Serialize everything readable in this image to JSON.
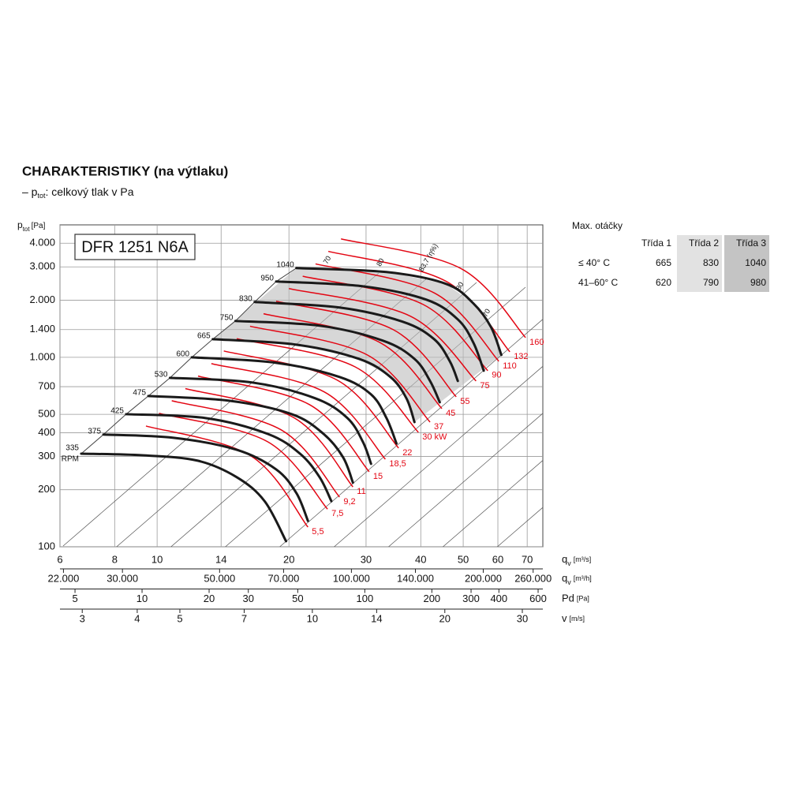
{
  "chart_data": {
    "type": "line",
    "title": "CHARAKTERISTIKY (na výtlaku)",
    "subtitle": {
      "prefix": "– p",
      "sub": "tot",
      "suffix": ": celkový tlak v Pa"
    },
    "y_label": {
      "symbol": "p",
      "sub": "tot",
      "unit": "[Pa]"
    },
    "model": "DFR 1251 N6A",
    "log_x": true,
    "log_y": true,
    "grid": true,
    "ylim": [
      100,
      5000
    ],
    "yticks": [
      100,
      200,
      300,
      400,
      500,
      700,
      {
        "value": 1000,
        "label": "1.000"
      },
      {
        "value": 1400,
        "label": "1.400"
      },
      {
        "value": 2000,
        "label": "2.000"
      },
      {
        "value": 3000,
        "label": "3.000"
      },
      {
        "value": 4000,
        "label": "4.000"
      }
    ],
    "xlim": [
      6,
      76
    ],
    "xticks": [
      6,
      8,
      10,
      14,
      20,
      30,
      40,
      50,
      60,
      70
    ],
    "x_label": {
      "symbol": "q",
      "sub": "v",
      "unit": "[m³/s]"
    },
    "secondary_x_axes": [
      {
        "label": {
          "symbol": "q",
          "sub": "v",
          "unit": "[m³/h]"
        },
        "lim": [
          21600,
          273600
        ],
        "ticks": [
          {
            "value": 22000,
            "label": "22.000"
          },
          {
            "value": 30000,
            "label": "30.000"
          },
          {
            "value": 50000,
            "label": "50.000"
          },
          {
            "value": 70000,
            "label": "70.000"
          },
          {
            "value": 100000,
            "label": "100.000"
          },
          {
            "value": 140000,
            "label": "140.000"
          },
          {
            "value": 200000,
            "label": "200.000"
          },
          {
            "value": 260000,
            "label": "260.000"
          }
        ]
      },
      {
        "label": {
          "symbol": "Pd",
          "unit": "[Pa]"
        },
        "lim": [
          4.28,
          630
        ],
        "ticks": [
          5,
          10,
          20,
          30,
          50,
          100,
          200,
          300,
          400,
          600
        ]
      },
      {
        "label": {
          "symbol": "v",
          "unit": "[m/s]"
        },
        "lim": [
          2.67,
          33.4
        ],
        "ticks": [
          3,
          4,
          5,
          7,
          10,
          14,
          20,
          30
        ]
      }
    ],
    "rpm_unit": "RPM",
    "shaded_between": [
      6,
      10
    ],
    "series": [
      {
        "name": "335",
        "color": "#1a1a1a",
        "x": [
          6.71,
          9.24,
          12.35,
          15.2,
          17.6,
          19.7
        ],
        "values": [
          310,
          304,
          285,
          233,
          174,
          107
        ]
      },
      {
        "name": "375",
        "color": "#1a1a1a",
        "x": [
          7.54,
          10.9,
          15.2,
          18.7,
          20.8,
          22.1
        ],
        "values": [
          391,
          376,
          325,
          256,
          192,
          137
        ]
      },
      {
        "name": "425",
        "color": "#1a1a1a",
        "x": [
          8.5,
          12.9,
          17.9,
          21.2,
          23.5,
          25.0
        ],
        "values": [
          501,
          478,
          394,
          310,
          233,
          174
        ]
      },
      {
        "name": "475",
        "color": "#1a1a1a",
        "x": [
          9.55,
          14.6,
          20.3,
          24.0,
          26.6,
          28.0
        ],
        "values": [
          625,
          590,
          501,
          394,
          296,
          218
        ]
      },
      {
        "name": "530",
        "color": "#1a1a1a",
        "x": [
          10.7,
          16.5,
          23.0,
          27.2,
          29.5,
          30.8
        ],
        "values": [
          779,
          736,
          607,
          478,
          358,
          274
        ]
      },
      {
        "name": "600",
        "color": "#1a1a1a",
        "x": [
          12.0,
          18.7,
          26.1,
          30.8,
          33.4,
          35.2
        ],
        "values": [
          1000,
          935,
          787,
          637,
          478,
          351
        ]
      },
      {
        "name": "665",
        "color": "#1a1a1a",
        "x": [
          13.4,
          20.8,
          28.9,
          34.1,
          37.1,
          38.7
        ],
        "values": [
          1247,
          1166,
          981,
          787,
          607,
          455
        ]
      },
      {
        "name": "750",
        "color": "#1a1a1a",
        "x": [
          15.1,
          23.5,
          32.8,
          38.7,
          42.0,
          44.2
        ],
        "values": [
          1555,
          1468,
          1224,
          981,
          750,
          579
        ]
      },
      {
        "name": "830",
        "color": "#1a1a1a",
        "x": [
          16.7,
          26.1,
          36.4,
          42.9,
          46.6,
          48.6
        ],
        "values": [
          1958,
          1831,
          1540,
          1247,
          953,
          750
        ]
      },
      {
        "name": "950",
        "color": "#1a1a1a",
        "x": [
          18.7,
          29.5,
          41.2,
          48.6,
          52.8,
          55.7
        ],
        "values": [
          2512,
          2371,
          2015,
          1585,
          1189,
          850
        ]
      },
      {
        "name": "1040",
        "color": "#1a1a1a",
        "x": [
          20.8,
          33.4,
          45.7,
          52.8,
          57.9,
          61.1
        ],
        "values": [
          2958,
          2818,
          2441,
          1920,
          1440,
          1029
        ]
      }
    ],
    "power_series": [
      {
        "name": "5,5",
        "color": "#e30613",
        "x": [
          9.43,
          16.4,
          22.1
        ],
        "values": [
          434,
          301,
          127
        ]
      },
      {
        "name": "7,5",
        "color": "#e30613",
        "x": [
          10.1,
          17.9,
          24.5
        ],
        "values": [
          506,
          358,
          158
        ]
      },
      {
        "name": "9,2",
        "color": "#e30613",
        "x": [
          10.8,
          19.2,
          26.1
        ],
        "values": [
          590,
          414,
          183
        ]
      },
      {
        "name": "11",
        "color": "#e30613",
        "x": [
          11.6,
          20.6,
          28.0
        ],
        "values": [
          684,
          478,
          207
        ]
      },
      {
        "name": "15",
        "color": "#e30613",
        "x": [
          12.4,
          22.3,
          30.5
        ],
        "values": [
          796,
          562,
          249
        ]
      },
      {
        "name": "18,5",
        "color": "#e30613",
        "x": [
          13.3,
          24.1,
          33.2
        ],
        "values": [
          926,
          656,
          290
        ]
      },
      {
        "name": "22",
        "color": "#e30613",
        "x": [
          14.2,
          25.8,
          35.6
        ],
        "values": [
          1080,
          757,
          332
        ]
      },
      {
        "name": "30 kW",
        "color": "#e30613",
        "x": [
          15.2,
          28.3,
          39.5
        ],
        "values": [
          1254,
          891,
          402
        ]
      },
      {
        "name": "37",
        "color": "#e30613",
        "x": [
          16.3,
          30.2,
          42.0
        ],
        "values": [
          1459,
          1029,
          455
        ]
      },
      {
        "name": "45",
        "color": "#e30613",
        "x": [
          17.5,
          32.2,
          44.7
        ],
        "values": [
          1698,
          1200,
          536
        ]
      },
      {
        "name": "55",
        "color": "#e30613",
        "x": [
          18.7,
          34.6,
          48.2
        ],
        "values": [
          1977,
          1400,
          619
        ]
      },
      {
        "name": "75",
        "color": "#e30613",
        "x": [
          20.0,
          37.9,
          53.5
        ],
        "values": [
          2305,
          1647,
          750
        ]
      },
      {
        "name": "90",
        "color": "#e30613",
        "x": [
          21.5,
          40.5,
          56.9
        ],
        "values": [
          2677,
          1901,
          850
        ]
      },
      {
        "name": "110",
        "color": "#e30613",
        "x": [
          23.0,
          43.0,
          60.3
        ],
        "values": [
          3113,
          2183,
          953
        ]
      },
      {
        "name": "132",
        "color": "#e30613",
        "x": [
          24.6,
          45.8,
          63.9
        ],
        "values": [
          3625,
          2512,
          1069
        ]
      },
      {
        "name": "160",
        "color": "#e30613",
        "x": [
          26.3,
          49.4,
          69.4
        ],
        "values": [
          4217,
          2943,
          1271
        ]
      }
    ],
    "efficiency_labels": [
      {
        "label": "70",
        "x": 24.5,
        "y": 3255
      },
      {
        "label": "80",
        "x": 32.4,
        "y": 3162
      },
      {
        "label": "83,7 (η%)",
        "x": 41.7,
        "y": 3350
      },
      {
        "label": "80",
        "x": 49.2,
        "y": 2371
      },
      {
        "label": "70",
        "x": 56.6,
        "y": 1711
      }
    ]
  },
  "table": {
    "title": "Max. otáčky",
    "columns": [
      "Třída 1",
      "Třída 2",
      "Třída 3"
    ],
    "column_colors": [
      "#ffffff",
      "#e2e2e2",
      "#c4c4c4"
    ],
    "rows": [
      {
        "label": "≤ 40° C",
        "values": [
          665,
          830,
          1040
        ]
      },
      {
        "label": "41–60° C",
        "values": [
          620,
          790,
          980
        ]
      }
    ]
  }
}
